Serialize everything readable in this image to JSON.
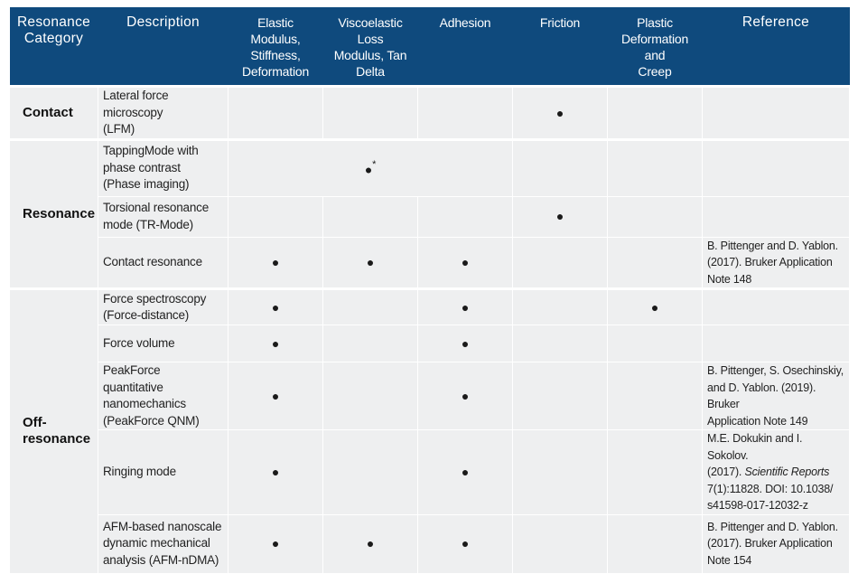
{
  "table": {
    "header": [
      "Resonance\nCategory",
      "Description",
      "Elastic Modulus,\nStiffness,\nDeformation",
      "Viscoelastic Loss\nModulus, Tan\nDelta",
      "Adhesion",
      "Friction",
      "Plastic\nDeformation and\nCreep",
      "Reference"
    ],
    "rows": [
      {
        "category": "Contact",
        "description": "Lateral force microscopy\n(LFM)",
        "friction": "●"
      },
      {
        "category": "Resonance",
        "description": "TappingMode with\nphase contrast\n(Phase imaging)",
        "properties": "●",
        "note": "*"
      },
      {
        "description": "Torsional resonance\nmode (TR-Mode)",
        "friction": "●"
      },
      {
        "description": "Contact resonance",
        "elastic": "●",
        "viscoelastic": "●",
        "adhesion": "●",
        "reference": "B. Pittenger and D. Yablon.\n(2017). Bruker Application\nNote 148"
      },
      {
        "category": "Off-\nresonance",
        "description": "Force spectroscopy\n(Force-distance)",
        "elastic": "●",
        "adhesion": "●",
        "plastic": "●"
      },
      {
        "description": "Force volume",
        "elastic": "●",
        "adhesion": "●"
      },
      {
        "description": "PeakForce quantitative\nnanomechanics\n(PeakForce QNM)",
        "elastic": "●",
        "adhesion": "●",
        "reference": "B. Pittenger, S. Osechinskiy,\nand D. Yablon. (2019). Bruker\nApplication Note 149"
      },
      {
        "description": "Ringing mode",
        "elastic": "●",
        "adhesion": "●",
        "reference": [
          "M.E. Dokukin and I. Sokolov.\n(2017). ",
          "Scientific Reports",
          "\n7(1):11828. DOI: 10.1038/\ns41598-017-12032-z"
        ]
      },
      {
        "description": "AFM-based nanoscale\ndynamic mechanical\nanalysis (AFM-nDMA)",
        "elastic": "●",
        "viscoelastic": "●",
        "adhesion": "●",
        "reference": "B. Pittenger and D. Yablon.\n(2017). Bruker Application\nNote 154"
      }
    ]
  }
}
